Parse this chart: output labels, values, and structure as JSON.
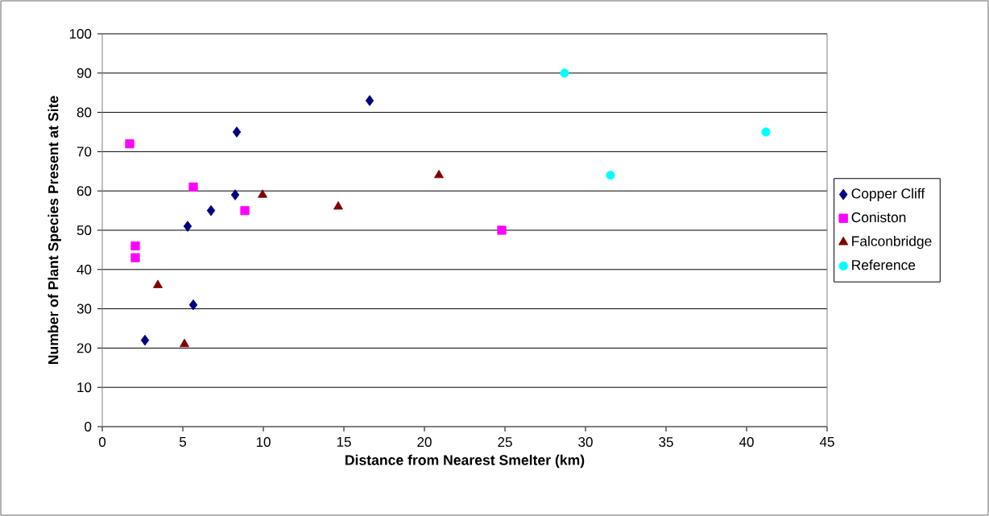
{
  "chart_data": {
    "type": "scatter",
    "xlabel": "Distance from Nearest Smelter (km)",
    "ylabel": "Number of Plant Species Present at Site",
    "xlim": [
      0,
      45
    ],
    "xticks": [
      0,
      5,
      10,
      15,
      20,
      25,
      30,
      35,
      40,
      45
    ],
    "ylim": [
      0,
      100
    ],
    "yticks": [
      0,
      10,
      20,
      30,
      40,
      50,
      60,
      70,
      80,
      90,
      100
    ],
    "grid": "y",
    "legend": "right",
    "series": [
      {
        "name": "Copper Cliff",
        "color": "#000080",
        "marker": "diamond",
        "x": [
          2.65,
          5.65,
          5.3,
          6.75,
          8.25,
          8.35,
          16.6
        ],
        "values": [
          22,
          31,
          51,
          55,
          59,
          75,
          83
        ]
      },
      {
        "name": "Coniston",
        "color": "#ff00ff",
        "marker": "square",
        "x": [
          1.7,
          2.05,
          2.05,
          5.65,
          8.85,
          24.8
        ],
        "values": [
          72,
          46,
          43,
          61,
          55,
          50
        ]
      },
      {
        "name": "Falconbridge",
        "color": "#800000",
        "marker": "triangle",
        "x": [
          3.45,
          5.1,
          9.95,
          14.65,
          20.9
        ],
        "values": [
          36,
          21,
          59,
          56,
          64
        ]
      },
      {
        "name": "Reference",
        "color": "#00ffff",
        "marker": "circle",
        "x": [
          28.7,
          31.55,
          41.2
        ],
        "values": [
          90,
          64,
          75
        ]
      }
    ]
  }
}
